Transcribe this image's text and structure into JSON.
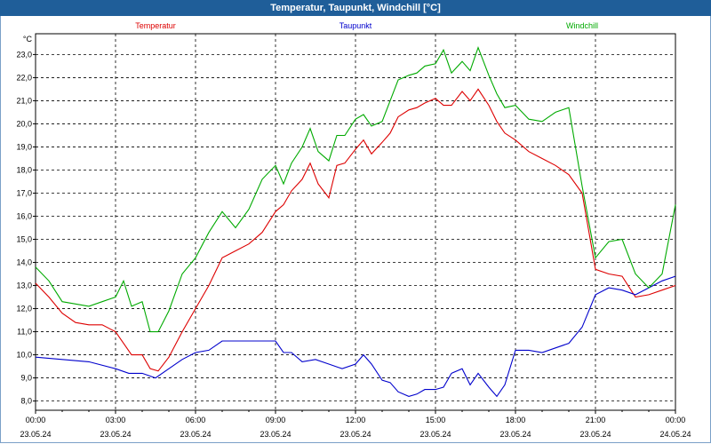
{
  "header": {
    "title": "Temperatur, Taupunkt, Windchill [°C]"
  },
  "colors": {
    "title_bg": "#1f5e99",
    "temperatur": "#dd0000",
    "taupunkt": "#0000cc",
    "windchill": "#00aa00"
  },
  "chart_data": {
    "type": "line",
    "title": "Temperatur, Taupunkt, Windchill [°C]",
    "ylabel": "°C",
    "ylim": [
      7.6,
      23.9
    ],
    "xlim_hours": [
      0,
      24
    ],
    "grid": true,
    "legend_position": "top",
    "y_ticks": [
      "8,0",
      "9,0",
      "10,0",
      "11,0",
      "12,0",
      "13,0",
      "14,0",
      "15,0",
      "16,0",
      "17,0",
      "18,0",
      "19,0",
      "20,0",
      "21,0",
      "22,0",
      "23,0"
    ],
    "y_tick_values": [
      8,
      9,
      10,
      11,
      12,
      13,
      14,
      15,
      16,
      17,
      18,
      19,
      20,
      21,
      22,
      23
    ],
    "x_ticks": [
      {
        "time": "00:00",
        "date": "23.05.24"
      },
      {
        "time": "03:00",
        "date": "23.05.24"
      },
      {
        "time": "06:00",
        "date": "23.05.24"
      },
      {
        "time": "09:00",
        "date": "23.05.24"
      },
      {
        "time": "12:00",
        "date": "23.05.24"
      },
      {
        "time": "15:00",
        "date": "23.05.24"
      },
      {
        "time": "18:00",
        "date": "23.05.24"
      },
      {
        "time": "21:00",
        "date": "23.05.24"
      },
      {
        "time": "00:00",
        "date": "24.05.24"
      }
    ],
    "x_tick_hours": [
      0,
      3,
      6,
      9,
      12,
      15,
      18,
      21,
      24
    ],
    "series": [
      {
        "name": "Temperatur",
        "x": [
          0,
          0.5,
          1,
          1.5,
          2,
          2.5,
          3,
          3.3,
          3.6,
          4,
          4.3,
          4.6,
          5,
          5.5,
          6,
          6.5,
          7,
          7.5,
          8,
          8.5,
          9,
          9.3,
          9.6,
          10,
          10.3,
          10.6,
          11,
          11.3,
          11.6,
          12,
          12.3,
          12.6,
          13,
          13.3,
          13.6,
          14,
          14.3,
          14.6,
          15,
          15.3,
          15.6,
          16,
          16.3,
          16.6,
          17,
          17.3,
          17.6,
          18,
          18.5,
          19,
          19.5,
          20,
          20.5,
          21,
          21.5,
          22,
          22.5,
          23,
          23.5,
          24
        ],
        "values": [
          13.1,
          12.5,
          11.8,
          11.4,
          11.3,
          11.3,
          11.0,
          10.5,
          10.0,
          10.0,
          9.4,
          9.3,
          9.9,
          11.0,
          12.0,
          13.0,
          14.2,
          14.5,
          14.8,
          15.3,
          16.2,
          16.5,
          17.1,
          17.6,
          18.3,
          17.4,
          16.8,
          18.2,
          18.3,
          18.9,
          19.3,
          18.7,
          19.2,
          19.6,
          20.3,
          20.6,
          20.7,
          20.9,
          21.1,
          20.8,
          20.8,
          21.4,
          21.0,
          21.5,
          20.8,
          20.1,
          19.6,
          19.3,
          18.8,
          18.5,
          18.2,
          17.8,
          17.0,
          13.7,
          13.5,
          13.4,
          12.5,
          12.6,
          12.8,
          13.0
        ]
      },
      {
        "name": "Taupunkt",
        "x": [
          0,
          1,
          2,
          3,
          3.5,
          4,
          4.5,
          5,
          5.5,
          6,
          6.5,
          7,
          7.5,
          8,
          8.5,
          9,
          9.3,
          9.6,
          10,
          10.5,
          11,
          11.5,
          12,
          12.3,
          12.6,
          13,
          13.3,
          13.6,
          14,
          14.3,
          14.6,
          15,
          15.3,
          15.6,
          16,
          16.3,
          16.6,
          17,
          17.3,
          17.6,
          18,
          18.5,
          19,
          19.5,
          20,
          20.5,
          21,
          21.5,
          22,
          22.5,
          23,
          23.5,
          24
        ],
        "values": [
          9.9,
          9.8,
          9.7,
          9.4,
          9.2,
          9.2,
          9.0,
          9.4,
          9.8,
          10.1,
          10.2,
          10.6,
          10.6,
          10.6,
          10.6,
          10.6,
          10.1,
          10.1,
          9.7,
          9.8,
          9.6,
          9.4,
          9.6,
          10.0,
          9.6,
          8.9,
          8.8,
          8.4,
          8.2,
          8.3,
          8.5,
          8.5,
          8.6,
          9.2,
          9.4,
          8.7,
          9.2,
          8.6,
          8.2,
          8.7,
          10.2,
          10.2,
          10.1,
          10.3,
          10.5,
          11.2,
          12.6,
          12.9,
          12.8,
          12.6,
          12.9,
          13.2,
          13.4
        ]
      },
      {
        "name": "Windchill",
        "x": [
          0,
          0.5,
          1,
          1.5,
          2,
          2.5,
          3,
          3.3,
          3.6,
          4,
          4.3,
          4.6,
          5,
          5.5,
          6,
          6.5,
          7,
          7.5,
          8,
          8.5,
          9,
          9.3,
          9.6,
          10,
          10.3,
          10.6,
          11,
          11.3,
          11.6,
          12,
          12.3,
          12.6,
          13,
          13.3,
          13.6,
          14,
          14.3,
          14.6,
          15,
          15.3,
          15.6,
          16,
          16.3,
          16.6,
          17,
          17.3,
          17.6,
          18,
          18.5,
          19,
          19.5,
          20,
          20.5,
          21,
          21.5,
          22,
          22.5,
          23,
          23.5,
          24
        ],
        "values": [
          13.8,
          13.2,
          12.3,
          12.2,
          12.1,
          12.3,
          12.5,
          13.2,
          12.1,
          12.3,
          11.0,
          11.0,
          11.9,
          13.5,
          14.2,
          15.3,
          16.2,
          15.5,
          16.3,
          17.6,
          18.2,
          17.4,
          18.3,
          19.0,
          19.8,
          18.8,
          18.4,
          19.5,
          19.5,
          20.2,
          20.4,
          19.9,
          20.1,
          21.0,
          21.9,
          22.1,
          22.2,
          22.5,
          22.6,
          23.2,
          22.2,
          22.7,
          22.3,
          23.3,
          22.1,
          21.3,
          20.7,
          20.8,
          20.2,
          20.1,
          20.5,
          20.7,
          17.3,
          14.2,
          14.9,
          15.0,
          13.5,
          12.9,
          13.5,
          16.5
        ]
      }
    ]
  }
}
